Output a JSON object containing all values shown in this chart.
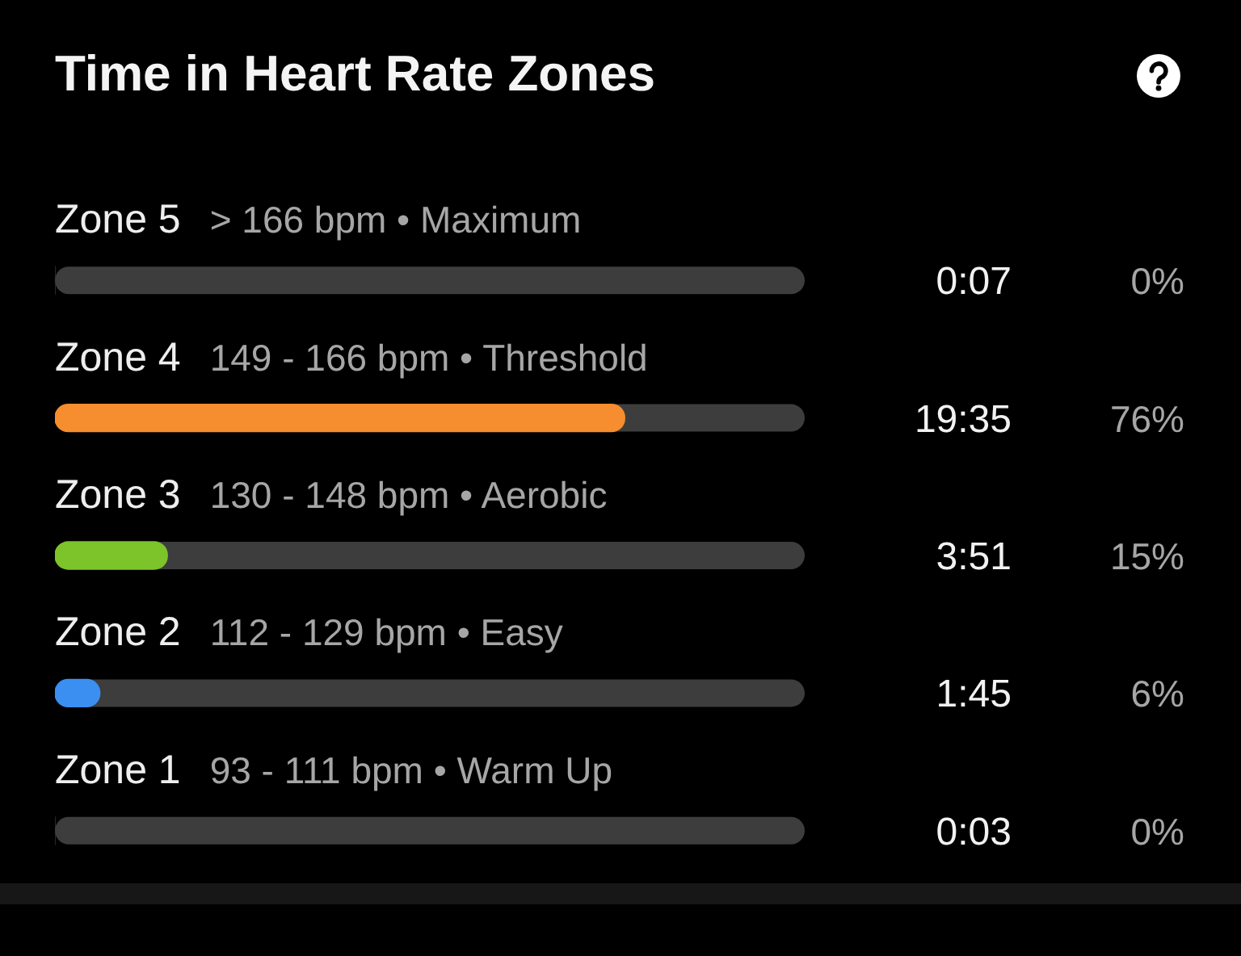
{
  "chart_data": {
    "type": "bar",
    "orientation": "horizontal",
    "title": "Time in Heart Rate Zones",
    "categories": [
      "Zone 5",
      "Zone 4",
      "Zone 3",
      "Zone 2",
      "Zone 1"
    ],
    "values": [
      0,
      76,
      15,
      6,
      0
    ],
    "colors": [
      "#3d3d3d",
      "#f68d2e",
      "#7cc42a",
      "#3b8ff0",
      "#3d3d3d"
    ],
    "xlim": [
      0,
      100
    ],
    "tick_labels": "y",
    "value_labels": [
      "0%",
      "76%",
      "15%",
      "6%",
      "0%"
    ],
    "annotations": [
      "> 166 bpm • Maximum",
      "0:07",
      "149 - 166 bpm • Threshold",
      "19:35",
      "130 - 148 bpm • Aerobic",
      "3:51",
      "112 - 129 bpm • Easy",
      "1:45",
      "93 - 111 bpm • Warm Up",
      "0:03"
    ]
  }
}
